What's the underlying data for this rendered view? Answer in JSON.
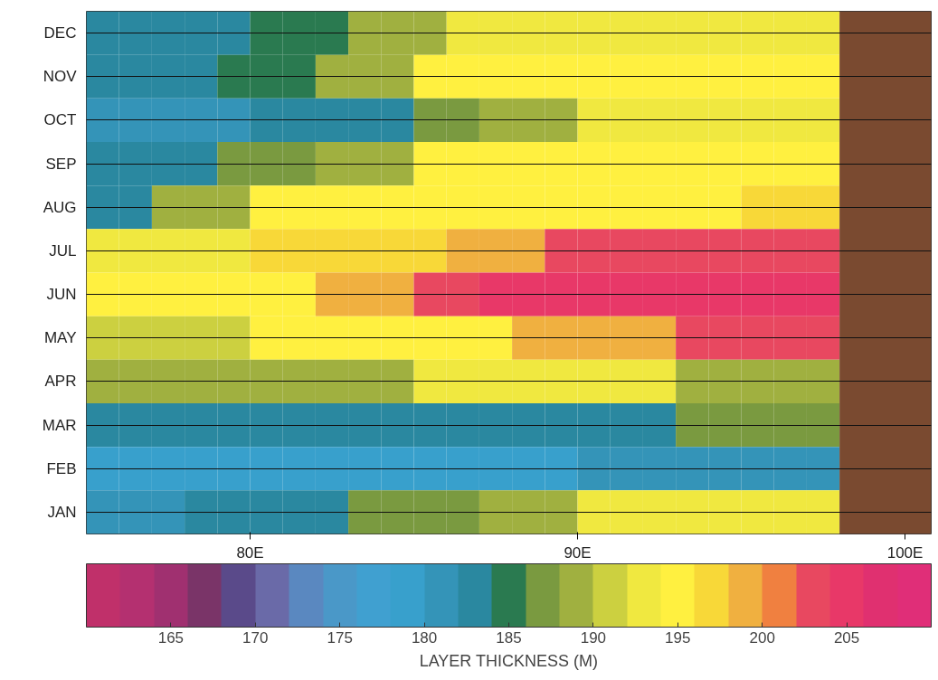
{
  "chart_data": {
    "type": "heatmap",
    "x": [
      75.5,
      76.5,
      77.5,
      78.5,
      79.5,
      80.5,
      81.5,
      82.5,
      83.5,
      84.5,
      85.5,
      86.5,
      87.5,
      88.5,
      89.5,
      90.5,
      91.5,
      92.5,
      93.5,
      94.5,
      95.5,
      96.5,
      97.5
    ],
    "y_categories": [
      "DEC",
      "NOV",
      "OCT",
      "SEP",
      "AUG",
      "JUL",
      "JUN",
      "MAY",
      "APR",
      "MAR",
      "FEB",
      "JAN"
    ],
    "cells": [
      [
        182,
        182,
        182,
        182,
        182,
        185,
        185,
        185,
        188,
        188,
        188,
        193,
        193,
        193,
        193,
        193,
        193,
        193,
        193,
        193,
        193,
        193,
        193
      ],
      [
        182,
        182,
        182,
        182,
        185,
        185,
        185,
        188,
        188,
        188,
        194,
        194,
        194,
        194,
        194,
        194,
        194,
        194,
        194,
        194,
        194,
        194,
        194
      ],
      [
        180,
        180,
        180,
        180,
        180,
        183,
        183,
        183,
        183,
        183,
        186,
        186,
        189,
        189,
        189,
        193,
        193,
        193,
        193,
        193,
        193,
        193,
        193
      ],
      [
        182,
        182,
        182,
        182,
        186,
        186,
        186,
        189,
        189,
        189,
        194,
        194,
        194,
        194,
        194,
        194,
        194,
        194,
        194,
        194,
        194,
        194,
        194
      ],
      [
        183,
        183,
        188,
        188,
        188,
        194,
        194,
        194,
        194,
        194,
        194,
        194,
        194,
        194,
        194,
        194,
        194,
        194,
        194,
        194,
        196,
        196,
        196
      ],
      [
        193,
        193,
        193,
        193,
        193,
        196,
        196,
        196,
        196,
        196,
        196,
        199,
        199,
        199,
        203,
        203,
        203,
        203,
        203,
        203,
        203,
        203,
        203
      ],
      [
        194,
        194,
        194,
        194,
        194,
        194,
        194,
        198,
        198,
        198,
        202,
        202,
        204,
        204,
        204,
        204,
        204,
        204,
        204,
        204,
        204,
        204,
        204
      ],
      [
        191,
        191,
        191,
        191,
        191,
        194,
        194,
        194,
        194,
        194,
        194,
        194,
        194,
        198,
        198,
        198,
        198,
        198,
        202,
        202,
        202,
        202,
        202
      ],
      [
        188,
        188,
        188,
        188,
        188,
        188,
        188,
        188,
        188,
        188,
        192,
        192,
        192,
        192,
        192,
        192,
        192,
        192,
        189,
        189,
        189,
        189,
        189
      ],
      [
        182,
        182,
        182,
        182,
        182,
        182,
        182,
        182,
        182,
        182,
        182,
        182,
        182,
        182,
        182,
        182,
        182,
        182,
        187,
        187,
        187,
        187,
        187
      ],
      [
        179,
        179,
        179,
        179,
        179,
        179,
        179,
        179,
        179,
        179,
        179,
        179,
        179,
        179,
        179,
        180,
        180,
        180,
        180,
        180,
        180,
        180,
        180
      ],
      [
        180,
        180,
        180,
        183,
        183,
        183,
        183,
        183,
        186,
        186,
        186,
        186,
        188,
        188,
        188,
        192,
        192,
        192,
        192,
        192,
        192,
        192,
        192
      ]
    ],
    "xlim": [
      75,
      100.8
    ],
    "xticks": [
      {
        "value": 80,
        "label": "80E"
      },
      {
        "value": 90,
        "label": "90E"
      },
      {
        "value": 100,
        "label": "100E"
      }
    ],
    "clim": [
      160,
      210
    ],
    "cticks": [
      165,
      170,
      175,
      180,
      185,
      190,
      195,
      200,
      205
    ],
    "clabel": "LAYER THICKNESS (M)",
    "colors": [
      "#c0306a",
      "#b43070",
      "#a03070",
      "#7a3468",
      "#5a4a8a",
      "#6a6aa8",
      "#5a88c0",
      "#4a98c8",
      "#40a0d0",
      "#38a0cc",
      "#3494b8",
      "#2a88a0",
      "#2a7a50",
      "#7a9a40",
      "#a0b040",
      "#ccd040",
      "#f0e840",
      "#fff040",
      "#f8d838",
      "#f0b040",
      "#f08040",
      "#e84860",
      "#e83868",
      "#e03070",
      "#e02e78"
    ],
    "bands": [
      {
        "axis": "x",
        "from": 98,
        "to": 100.8,
        "color": "#7a4a30"
      }
    ],
    "grid": "y"
  }
}
